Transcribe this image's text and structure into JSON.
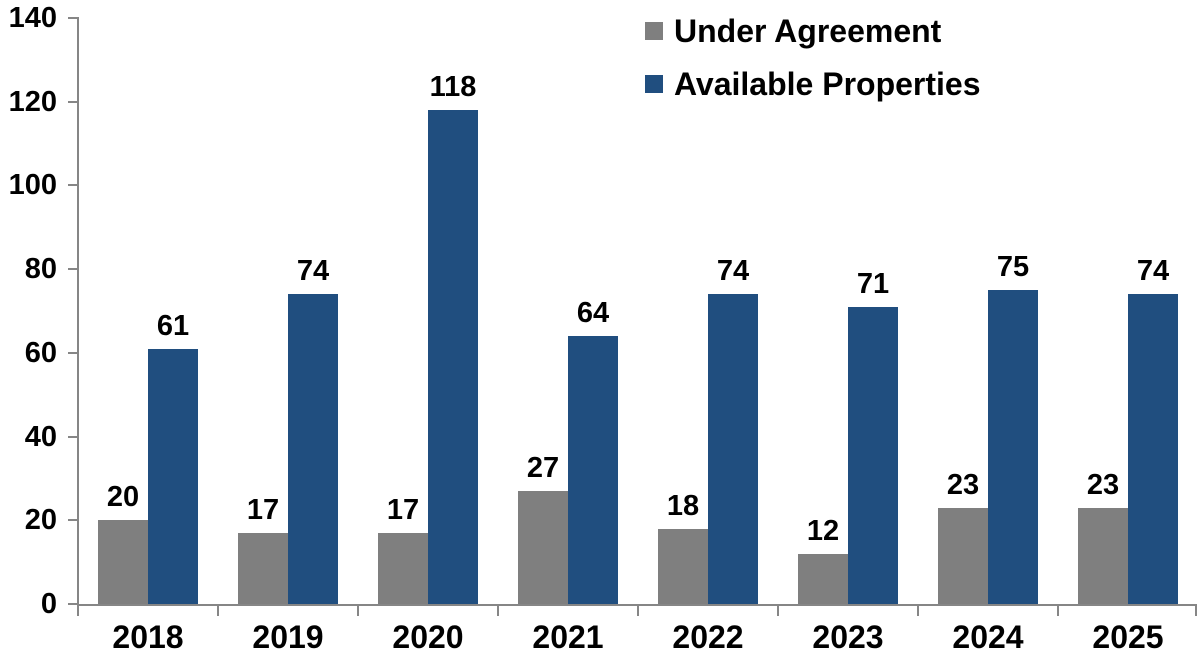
{
  "chart_data": {
    "type": "bar",
    "categories": [
      "2018",
      "2019",
      "2020",
      "2021",
      "2022",
      "2023",
      "2024",
      "2025"
    ],
    "series": [
      {
        "name": "Under Agreement",
        "color": "#7F7F7F",
        "values": [
          20,
          17,
          17,
          27,
          18,
          12,
          23,
          23
        ]
      },
      {
        "name": "Available Properties",
        "color": "#204E7F",
        "values": [
          61,
          74,
          118,
          64,
          74,
          71,
          75,
          74
        ]
      }
    ],
    "title": "",
    "xlabel": "",
    "ylabel": "",
    "ylim": [
      0,
      140
    ],
    "yticks": [
      0,
      20,
      40,
      60,
      80,
      100,
      120,
      140
    ],
    "grid": false,
    "legend_position": "top-center",
    "data_labels": true,
    "axis_color": "#868686",
    "text_color": "#000000",
    "background_color": "#FFFFFF"
  }
}
